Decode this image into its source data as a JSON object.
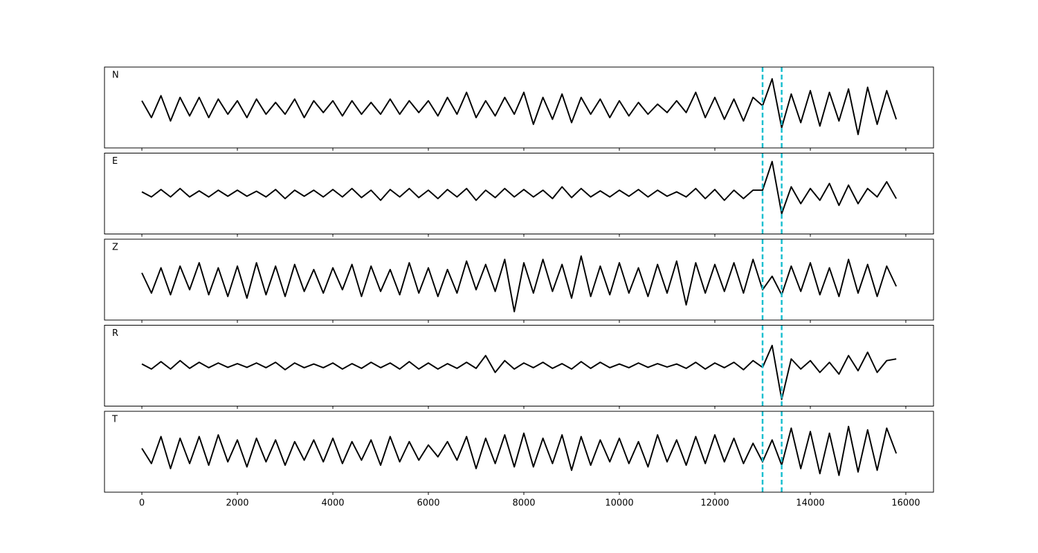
{
  "chart_data": {
    "type": "line",
    "layout": "stacked",
    "x": [
      0,
      200,
      400,
      600,
      800,
      1000,
      1200,
      1400,
      1600,
      1800,
      2000,
      2200,
      2400,
      2600,
      2800,
      3000,
      3200,
      3400,
      3600,
      3800,
      4000,
      4200,
      4400,
      4600,
      4800,
      5000,
      5200,
      5400,
      5600,
      5800,
      6000,
      6200,
      6400,
      6600,
      6800,
      7000,
      7200,
      7400,
      7600,
      7800,
      8000,
      8200,
      8400,
      8600,
      8800,
      9000,
      9200,
      9400,
      9600,
      9800,
      10000,
      10200,
      10400,
      10600,
      10800,
      11000,
      11200,
      11400,
      11600,
      11800,
      12000,
      12200,
      12400,
      12600,
      12800,
      13000,
      13200,
      13400,
      13600,
      13800,
      14000,
      14200,
      14400,
      14600,
      14800,
      15000,
      15200,
      15400,
      15600,
      15800
    ],
    "xlim": [
      -783,
      16580
    ],
    "xticks": [
      0,
      2000,
      4000,
      6000,
      8000,
      10000,
      12000,
      14000,
      16000
    ],
    "ylim": [
      -1.2,
      1.2
    ],
    "markers": [
      13000,
      13400
    ],
    "marker_color": "#17becf",
    "series": [
      {
        "name": "N",
        "color": "#000000",
        "values": [
          0.2,
          -0.3,
          0.35,
          -0.4,
          0.3,
          -0.25,
          0.3,
          -0.3,
          0.25,
          -0.2,
          0.2,
          -0.3,
          0.25,
          -0.2,
          0.15,
          -0.2,
          0.25,
          -0.3,
          0.2,
          -0.15,
          0.2,
          -0.25,
          0.2,
          -0.2,
          0.15,
          -0.2,
          0.25,
          -0.2,
          0.2,
          -0.15,
          0.2,
          -0.25,
          0.3,
          -0.2,
          0.45,
          -0.3,
          0.2,
          -0.25,
          0.3,
          -0.2,
          0.45,
          -0.5,
          0.3,
          -0.35,
          0.4,
          -0.45,
          0.3,
          -0.2,
          0.25,
          -0.3,
          0.2,
          -0.25,
          0.15,
          -0.2,
          0.1,
          -0.15,
          0.2,
          -0.15,
          0.45,
          -0.3,
          0.3,
          -0.35,
          0.25,
          -0.4,
          0.3,
          0.05,
          0.85,
          -0.6,
          0.4,
          -0.45,
          0.5,
          -0.55,
          0.45,
          -0.4,
          0.55,
          -0.8,
          0.6,
          -0.5,
          0.5,
          -0.35
        ]
      },
      {
        "name": "E",
        "color": "#000000",
        "values": [
          0.05,
          -0.1,
          0.12,
          -0.1,
          0.15,
          -0.1,
          0.08,
          -0.1,
          0.1,
          -0.08,
          0.1,
          -0.08,
          0.07,
          -0.1,
          0.12,
          -0.15,
          0.1,
          -0.08,
          0.1,
          -0.1,
          0.12,
          -0.1,
          0.15,
          -0.12,
          0.1,
          -0.2,
          0.12,
          -0.1,
          0.15,
          -0.12,
          0.1,
          -0.15,
          0.12,
          -0.1,
          0.15,
          -0.2,
          0.1,
          -0.12,
          0.15,
          -0.1,
          0.12,
          -0.1,
          0.1,
          -0.15,
          0.2,
          -0.12,
          0.15,
          -0.1,
          0.08,
          -0.1,
          0.1,
          -0.08,
          0.12,
          -0.1,
          0.1,
          -0.08,
          0.05,
          -0.1,
          0.15,
          -0.15,
          0.12,
          -0.2,
          0.1,
          -0.15,
          0.1,
          0.1,
          0.95,
          -0.6,
          0.2,
          -0.3,
          0.15,
          -0.2,
          0.3,
          -0.35,
          0.25,
          -0.3,
          0.15,
          -0.1,
          0.35,
          -0.15
        ]
      },
      {
        "name": "Z",
        "color": "#000000",
        "values": [
          0.2,
          -0.4,
          0.35,
          -0.45,
          0.4,
          -0.3,
          0.5,
          -0.45,
          0.35,
          -0.5,
          0.4,
          -0.55,
          0.5,
          -0.45,
          0.4,
          -0.5,
          0.45,
          -0.35,
          0.3,
          -0.4,
          0.35,
          -0.3,
          0.45,
          -0.5,
          0.4,
          -0.35,
          0.3,
          -0.45,
          0.5,
          -0.4,
          0.35,
          -0.5,
          0.3,
          -0.4,
          0.55,
          -0.3,
          0.45,
          -0.35,
          0.6,
          -0.95,
          0.5,
          -0.4,
          0.6,
          -0.35,
          0.45,
          -0.55,
          0.7,
          -0.5,
          0.4,
          -0.45,
          0.5,
          -0.4,
          0.35,
          -0.5,
          0.45,
          -0.4,
          0.55,
          -0.75,
          0.5,
          -0.4,
          0.45,
          -0.35,
          0.5,
          -0.4,
          0.6,
          -0.3,
          0.1,
          -0.45,
          0.4,
          -0.35,
          0.5,
          -0.45,
          0.35,
          -0.5,
          0.6,
          -0.4,
          0.45,
          -0.5,
          0.4,
          -0.2
        ]
      },
      {
        "name": "R",
        "color": "#000000",
        "values": [
          0.05,
          -0.1,
          0.12,
          -0.1,
          0.15,
          -0.08,
          0.1,
          -0.06,
          0.08,
          -0.05,
          0.06,
          -0.05,
          0.08,
          -0.06,
          0.1,
          -0.12,
          0.08,
          -0.06,
          0.05,
          -0.06,
          0.08,
          -0.1,
          0.06,
          -0.08,
          0.1,
          -0.06,
          0.08,
          -0.1,
          0.12,
          -0.1,
          0.08,
          -0.1,
          0.06,
          -0.08,
          0.1,
          -0.08,
          0.3,
          -0.2,
          0.15,
          -0.1,
          0.08,
          -0.06,
          0.1,
          -0.08,
          0.06,
          -0.1,
          0.12,
          -0.08,
          0.1,
          -0.06,
          0.05,
          -0.06,
          0.08,
          -0.05,
          0.06,
          -0.04,
          0.05,
          -0.08,
          0.1,
          -0.1,
          0.08,
          -0.06,
          0.1,
          -0.12,
          0.15,
          -0.05,
          0.6,
          -1.0,
          0.2,
          -0.1,
          0.15,
          -0.2,
          0.1,
          -0.25,
          0.3,
          -0.15,
          0.4,
          -0.2,
          0.15,
          0.2
        ]
      },
      {
        "name": "T",
        "color": "#000000",
        "values": [
          0.1,
          -0.35,
          0.45,
          -0.5,
          0.4,
          -0.35,
          0.45,
          -0.4,
          0.5,
          -0.3,
          0.35,
          -0.45,
          0.4,
          -0.3,
          0.35,
          -0.4,
          0.3,
          -0.25,
          0.35,
          -0.3,
          0.4,
          -0.35,
          0.3,
          -0.25,
          0.35,
          -0.4,
          0.45,
          -0.3,
          0.3,
          -0.25,
          0.2,
          -0.15,
          0.3,
          -0.25,
          0.45,
          -0.5,
          0.4,
          -0.35,
          0.5,
          -0.45,
          0.55,
          -0.45,
          0.4,
          -0.35,
          0.5,
          -0.55,
          0.45,
          -0.4,
          0.35,
          -0.3,
          0.4,
          -0.35,
          0.3,
          -0.45,
          0.5,
          -0.3,
          0.35,
          -0.4,
          0.45,
          -0.35,
          0.5,
          -0.3,
          0.4,
          -0.35,
          0.25,
          -0.3,
          0.35,
          -0.4,
          0.7,
          -0.5,
          0.6,
          -0.65,
          0.55,
          -0.7,
          0.75,
          -0.6,
          0.65,
          -0.55,
          0.7,
          -0.05
        ]
      }
    ]
  }
}
